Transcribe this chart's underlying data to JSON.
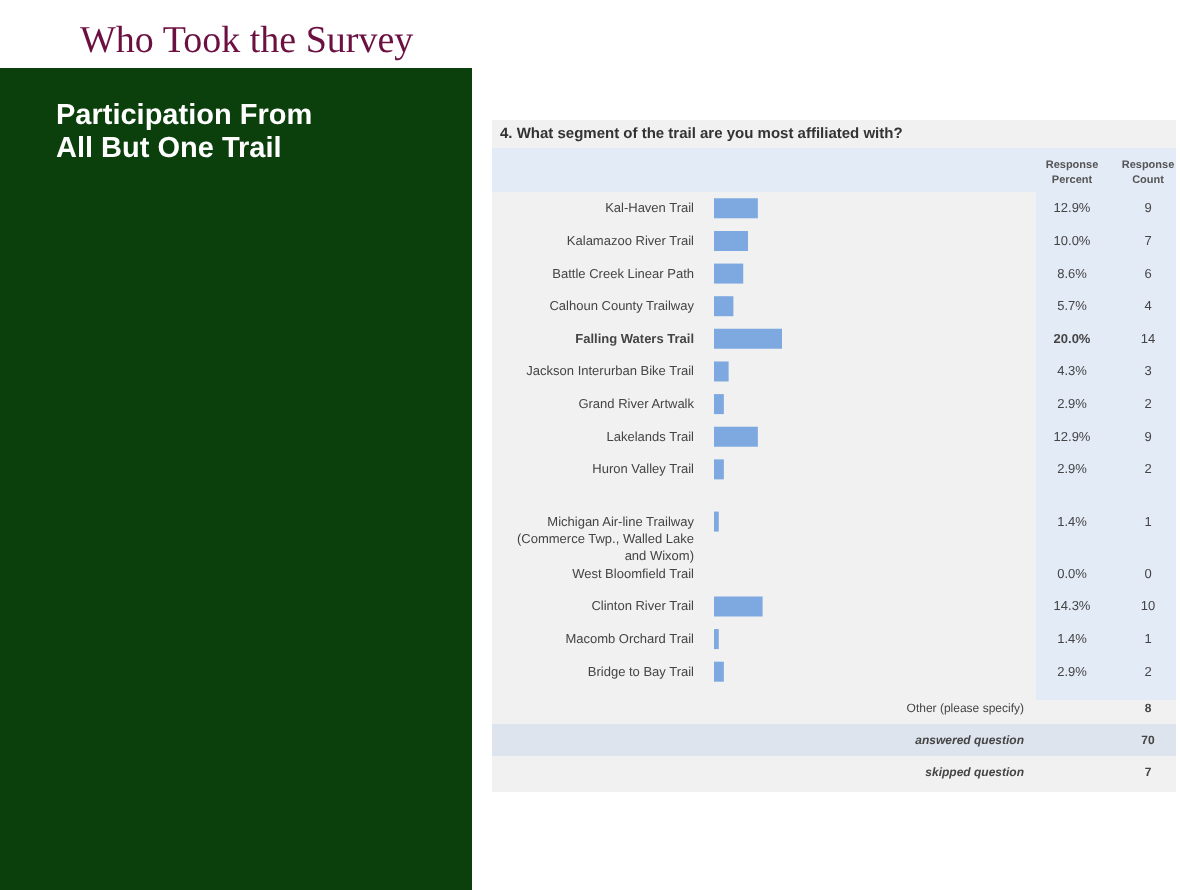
{
  "chart_data": {
    "type": "bar",
    "orientation": "horizontal",
    "title": "Who Took the Survey",
    "subtitle": "4. What segment of the trail are you most affiliated with?",
    "categories": [
      "Kal-Haven Trail",
      "Kalamazoo River Trail",
      "Battle Creek Linear Path",
      "Calhoun County Trailway",
      "Falling Waters Trail",
      "Jackson Interurban Bike Trail",
      "Grand River Artwalk",
      "Lakelands Trail",
      "Huron Valley Trail",
      "Michigan Air-line Trailway (Commerce Twp., Walled Lake and Wixom)",
      "West Bloomfield Trail",
      "Clinton River Trail",
      "Macomb Orchard Trail",
      "Bridge to Bay Trail"
    ],
    "values": [
      12.9,
      10.0,
      8.6,
      5.7,
      20.0,
      4.3,
      2.9,
      12.9,
      2.9,
      1.4,
      0.0,
      14.3,
      1.4,
      2.9
    ],
    "value_labels": [
      "12.9%",
      "10.0%",
      "8.6%",
      "5.7%",
      "20.0%",
      "4.3%",
      "2.9%",
      "12.9%",
      "2.9%",
      "1.4%",
      "0.0%",
      "14.3%",
      "1.4%",
      "2.9%"
    ],
    "color": "#7ea8e0",
    "annotations": [
      "Participation From All But One Trail",
      "Response Percent",
      "Response Count",
      "Other (please specify)",
      "8",
      "answered question",
      "70",
      "skipped question",
      "7",
      "9",
      "7",
      "6",
      "4",
      "14",
      "3",
      "2",
      "9",
      "2",
      "1",
      "0",
      "10",
      "1",
      "2"
    ]
  }
}
